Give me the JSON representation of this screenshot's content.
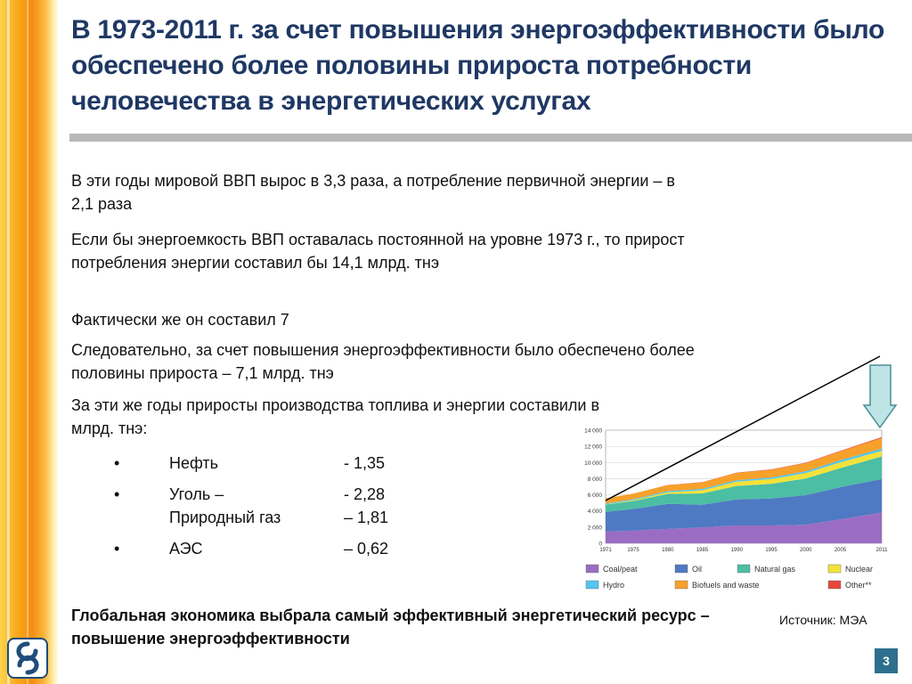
{
  "title": "В 1973-2011 г. за счет повышения энергоэффективности было обеспечено более половины прироста потребности человечества в энергетических услугах",
  "paragraphs": [
    "В эти годы мировой ВВП вырос в 3,3 раза, а потребление первичной энергии – в 2,1 раза",
    "Если бы энергоемкость ВВП оставалась постоянной на уровне 1973 г., то прирост потребления энергии составил бы 14,1 млрд. тнэ",
    "Фактически же он составил 7",
    "Следовательно, за счет повышения энергоэффективности было обеспечено более половины прироста – 7,1 млрд. тнэ",
    "За эти же годы приросты производства топлива и энергии составили в млрд. тнэ:"
  ],
  "bullets": [
    {
      "marker": "•",
      "label": "Нефть",
      "value": "- 1,35"
    },
    {
      "marker": "•",
      "label": "Уголь –",
      "value": "-  2,28"
    },
    {
      "marker": "",
      "label": "Природный газ",
      "value": "– 1,81"
    },
    {
      "marker": "•",
      "label": "АЭС",
      "value": "– 0,62"
    }
  ],
  "conclusion": "Глобальная экономика выбрала самый эффективный энергетический ресурс – повышение энергоэффективности",
  "source": "Источник: МЭА",
  "page_number": "3",
  "colors": {
    "title": "#1f3864",
    "coal": "#9b6cc3",
    "oil": "#4f79c3",
    "gas": "#4cbea3",
    "nuclear": "#f3e23a",
    "hydro": "#53c5ee",
    "biofuels": "#f6a12a",
    "other": "#e8493a"
  },
  "chart_data": {
    "type": "area",
    "x": [
      1971,
      1975,
      1980,
      1985,
      1990,
      1995,
      2000,
      2005,
      2011
    ],
    "x_tick_labels": [
      "1971",
      "1975",
      "1980",
      "1985",
      "1990",
      "1995",
      "2000",
      "2005",
      "2011"
    ],
    "y_tick_labels": [
      "0",
      "2 000",
      "4 000",
      "6 000",
      "8 000",
      "10 000",
      "12 000",
      "14 000"
    ],
    "ylim": [
      0,
      14000
    ],
    "stacked": true,
    "legend_position": "bottom",
    "series": [
      {
        "name": "Coal/peat",
        "color": "#9b6cc3",
        "values": [
          1450,
          1560,
          1780,
          1970,
          2200,
          2200,
          2300,
          2950,
          3800
        ]
      },
      {
        "name": "Oil",
        "color": "#4f79c3",
        "values": [
          2440,
          2680,
          3100,
          2800,
          3230,
          3350,
          3650,
          4000,
          4150
        ]
      },
      {
        "name": "Natural gas",
        "color": "#4cbea3",
        "values": [
          900,
          1000,
          1240,
          1400,
          1670,
          1800,
          2070,
          2350,
          2800
        ]
      },
      {
        "name": "Nuclear",
        "color": "#f3e23a",
        "values": [
          30,
          100,
          190,
          390,
          530,
          600,
          680,
          720,
          680
        ]
      },
      {
        "name": "Hydro",
        "color": "#53c5ee",
        "values": [
          100,
          120,
          150,
          170,
          180,
          200,
          220,
          250,
          300
        ]
      },
      {
        "name": "Biofuels and waste",
        "color": "#f6a12a",
        "values": [
          640,
          680,
          740,
          800,
          900,
          950,
          1000,
          1100,
          1300
        ]
      },
      {
        "name": "Other**",
        "color": "#e8493a",
        "values": [
          5,
          8,
          15,
          30,
          40,
          50,
          60,
          70,
          120
        ]
      }
    ]
  }
}
